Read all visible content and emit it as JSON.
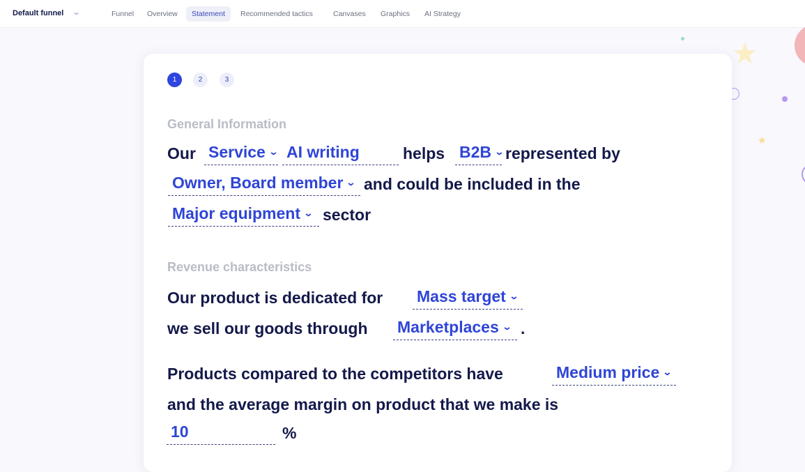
{
  "header": {
    "funnel": "Default funnel",
    "tabs": [
      "Funnel",
      "Overview",
      "Statement",
      "Recommended tactics",
      "Canvases",
      "Graphics",
      "AI Strategy"
    ],
    "active_tab": "Statement"
  },
  "steps": [
    "1",
    "2",
    "3"
  ],
  "general": {
    "title": "General Information",
    "our": "Our",
    "type": "Service",
    "product": "AI writing",
    "helps": "helps",
    "market": "B2B",
    "represented": "represented by",
    "roles": "Owner, Board member",
    "included": "and could be included in the",
    "sector": "Major equipment",
    "sector_word": "sector"
  },
  "revenue": {
    "title": "Revenue characteristics",
    "dedicated": "Our product is dedicated for",
    "target": "Mass target",
    "sell": "we sell our goods through",
    "channel": "Marketplaces",
    "period": ".",
    "compared": "Products compared to the competitors have",
    "price": "Medium price",
    "margin_text": "and the average margin on product that we make is",
    "margin": "10",
    "percent": "%"
  },
  "colors": {
    "accent": "#2f45d6",
    "text": "#14194a",
    "muted": "#b9bcc6"
  }
}
